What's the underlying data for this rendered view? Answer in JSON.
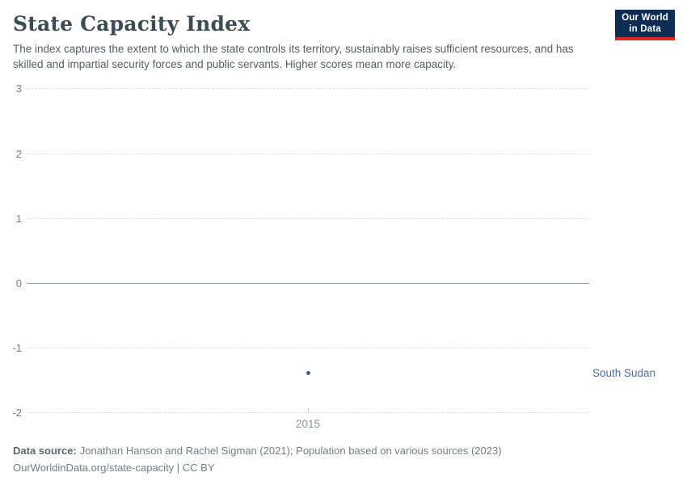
{
  "header": {
    "title": "State Capacity Index",
    "subtitle": "The index captures the extent to which the state controls its territory, sustainably raises sufficient resources, and has skilled and impartial security forces and public servants. Higher scores mean more capacity.",
    "logo_line1": "Our World",
    "logo_line2": "in Data"
  },
  "chart_data": {
    "type": "scatter",
    "title": "State Capacity Index",
    "xlabel": "",
    "ylabel": "",
    "ylim": [
      -2,
      3
    ],
    "yticks": [
      3,
      2,
      1,
      0,
      -1,
      -2
    ],
    "xticks": [
      2015
    ],
    "grid": "horizontal-dashed",
    "zero_line": true,
    "legend_position": "right-of-point",
    "series": [
      {
        "name": "South Sudan",
        "color": "#3d6493",
        "label_color": "#4c6a9c",
        "points": [
          {
            "x": 2015,
            "y": -1.37
          }
        ]
      }
    ]
  },
  "footer": {
    "data_source_label": "Data source:",
    "data_source_text": "Jonathan Hanson and Rachel Sigman (2021); Population based on various sources (2023)",
    "license_line": "OurWorldinData.org/state-capacity | CC BY"
  },
  "colors": {
    "title": "#3b4c54",
    "subtitle": "#565d61",
    "gridline": "#dcdfe0",
    "zero_line": "#8b9298",
    "axis_label": "#747e83",
    "point_blue": "#3d6493",
    "entity_label_blue": "#4c6a9c",
    "logo_navy": "#0d2d52",
    "logo_red": "#dc2a20",
    "footer_text": "#757d81"
  }
}
